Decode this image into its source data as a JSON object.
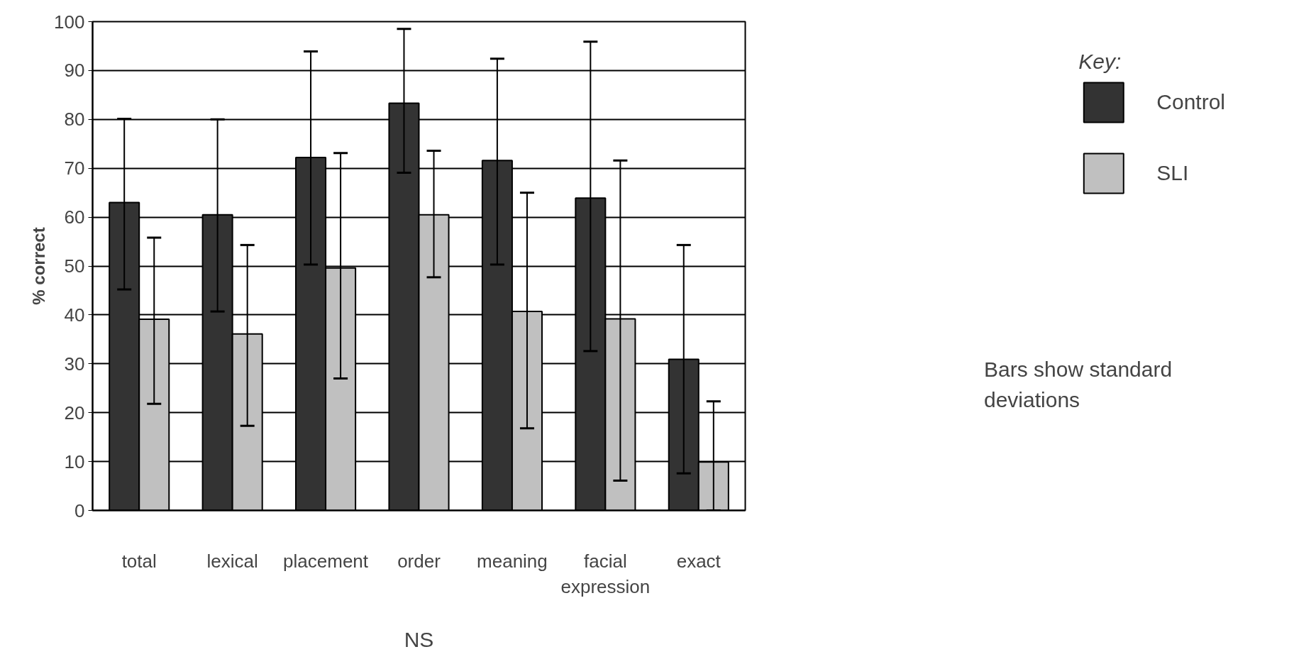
{
  "chart_data": {
    "type": "bar",
    "xlabel": "NS",
    "ylabel": "% correct",
    "legend_title": "Key:",
    "categories": [
      "total",
      "lexical",
      "placement",
      "order",
      "meaning",
      "facial expression",
      "exact"
    ],
    "series": [
      {
        "name": "Control",
        "color": "#333333",
        "values": [
          63.0,
          60.5,
          72.2,
          83.3,
          71.6,
          63.9,
          30.9
        ],
        "errors": [
          [
            45.2,
            80.1
          ],
          [
            40.7,
            80.0
          ],
          [
            50.3,
            93.9
          ],
          [
            69.1,
            98.5
          ],
          [
            50.3,
            92.4
          ],
          [
            32.6,
            95.9
          ],
          [
            7.6,
            54.3
          ]
        ]
      },
      {
        "name": "SLI",
        "color": "#c0c0c0",
        "values": [
          39.1,
          36.1,
          49.6,
          60.5,
          40.7,
          39.2,
          9.9
        ],
        "errors": [
          [
            21.8,
            55.8
          ],
          [
            17.3,
            54.3
          ],
          [
            27.0,
            73.1
          ],
          [
            47.7,
            73.6
          ],
          [
            16.8,
            65.0
          ],
          [
            6.1,
            71.6
          ],
          [
            0,
            22.3
          ]
        ]
      }
    ],
    "ylim": [
      0,
      100
    ],
    "yticks": [
      0,
      10,
      20,
      30,
      40,
      50,
      60,
      70,
      80,
      90,
      100
    ],
    "grid": "y",
    "legend": "right",
    "annotations": [
      "Bars show standard deviations"
    ]
  }
}
